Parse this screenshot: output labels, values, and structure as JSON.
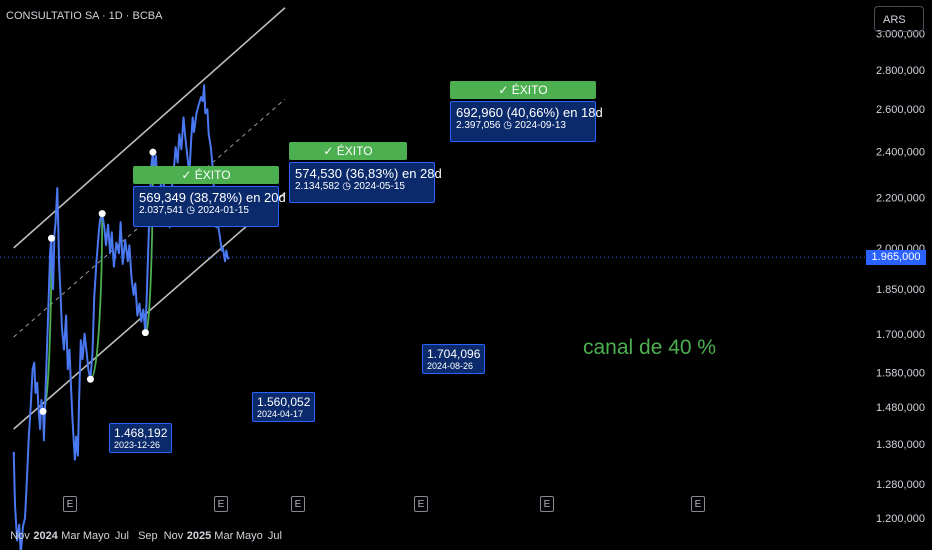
{
  "header": {
    "symbol_line": "CONSULTATIO SA · 1D · BCBA",
    "currency": "ARS"
  },
  "colors": {
    "price": "#4a78f0",
    "success": "#4caf50",
    "label_bg": "#0b2a6b",
    "label_border": "#2962ff"
  },
  "annotations": {
    "signals": [
      {
        "badge": "✓ ÉXITO",
        "gain": "569,349 (38,78%) en 20d",
        "target": "2.037,541",
        "date": "2024-01-15"
      },
      {
        "badge": "✓ ÉXITO",
        "gain": "574,530 (36,83%) en 28d",
        "target": "2.134,582",
        "date": "2024-05-15"
      },
      {
        "badge": "✓ ÉXITO",
        "gain": "692,960 (40,66%) en 18d",
        "target": "2.397,056",
        "date": "2024-09-13"
      }
    ],
    "lows": [
      {
        "price": "1.468,192",
        "date": "2023-12-26"
      },
      {
        "price": "1.560,052",
        "date": "2024-04-17"
      },
      {
        "price": "1.704,096",
        "date": "2024-08-26"
      }
    ],
    "channel_label": "canal de 40 %",
    "earnings_marker": "E"
  },
  "chart_data": {
    "type": "line",
    "title": "CONSULTATIO SA · 1D · BCBA",
    "y_axis_ticks": [
      "3.000,000",
      "2.800,000",
      "2.600,000",
      "2.400,000",
      "2.200,000",
      "2.000,000",
      "1.850,000",
      "1.700,000",
      "1.580,000",
      "1.480,000",
      "1.380,000",
      "1.280,000",
      "1.200,000"
    ],
    "y_scale": "log",
    "x_axis_ticks": [
      "Nov",
      "2024",
      "Mar",
      "Mayo",
      "Jul",
      "Sep",
      "Nov",
      "2025",
      "Mar",
      "Mayo",
      "Jul"
    ],
    "last_price": "1.965,000",
    "series": [
      {
        "values": [
          [
            "2023-10-17",
            1360
          ],
          [
            "2023-10-20",
            1230
          ],
          [
            "2023-10-25",
            1150
          ],
          [
            "2023-10-30",
            1185
          ],
          [
            "2023-11-03",
            1120
          ],
          [
            "2023-11-08",
            1180
          ],
          [
            "2023-11-13",
            1200
          ],
          [
            "2023-11-17",
            1280
          ],
          [
            "2023-11-22",
            1400
          ],
          [
            "2023-11-27",
            1490
          ],
          [
            "2023-12-01",
            1590
          ],
          [
            "2023-12-05",
            1610
          ],
          [
            "2023-12-08",
            1520
          ],
          [
            "2023-12-12",
            1550
          ],
          [
            "2023-12-15",
            1480
          ],
          [
            "2023-12-19",
            1420
          ],
          [
            "2023-12-22",
            1500
          ],
          [
            "2023-12-26",
            1468
          ],
          [
            "2023-12-28",
            1390
          ],
          [
            "2024-01-03",
            1600
          ],
          [
            "2024-01-08",
            1800
          ],
          [
            "2024-01-12",
            1990
          ],
          [
            "2024-01-15",
            2037
          ],
          [
            "2024-01-17",
            1900
          ],
          [
            "2024-01-19",
            1850
          ],
          [
            "2024-01-22",
            2050
          ],
          [
            "2024-01-25",
            2100
          ],
          [
            "2024-01-29",
            2240
          ],
          [
            "2024-01-31",
            2100
          ],
          [
            "2024-02-02",
            1950
          ],
          [
            "2024-02-06",
            1820
          ],
          [
            "2024-02-09",
            1720
          ],
          [
            "2024-02-14",
            1650
          ],
          [
            "2024-02-19",
            1760
          ],
          [
            "2024-02-23",
            1590
          ],
          [
            "2024-02-27",
            1650
          ],
          [
            "2024-03-01",
            1560
          ],
          [
            "2024-03-05",
            1450
          ],
          [
            "2024-03-08",
            1390
          ],
          [
            "2024-03-11",
            1340
          ],
          [
            "2024-03-14",
            1400
          ],
          [
            "2024-03-18",
            1350
          ],
          [
            "2024-03-21",
            1500
          ],
          [
            "2024-03-25",
            1680
          ],
          [
            "2024-03-29",
            1620
          ],
          [
            "2024-04-03",
            1700
          ],
          [
            "2024-04-08",
            1640
          ],
          [
            "2024-04-12",
            1590
          ],
          [
            "2024-04-17",
            1560
          ],
          [
            "2024-04-22",
            1640
          ],
          [
            "2024-04-26",
            1820
          ],
          [
            "2024-05-02",
            1960
          ],
          [
            "2024-05-07",
            2060
          ],
          [
            "2024-05-10",
            2110
          ],
          [
            "2024-05-15",
            2134
          ],
          [
            "2024-05-20",
            2080
          ],
          [
            "2024-05-24",
            2010
          ],
          [
            "2024-05-29",
            2090
          ],
          [
            "2024-06-03",
            1980
          ],
          [
            "2024-06-07",
            2060
          ],
          [
            "2024-06-12",
            1930
          ],
          [
            "2024-06-18",
            2020
          ],
          [
            "2024-06-24",
            1980
          ],
          [
            "2024-06-28",
            2100
          ],
          [
            "2024-07-03",
            1940
          ],
          [
            "2024-07-09",
            2030
          ],
          [
            "2024-07-15",
            1950
          ],
          [
            "2024-07-19",
            2010
          ],
          [
            "2024-07-24",
            1890
          ],
          [
            "2024-07-29",
            1830
          ],
          [
            "2024-08-02",
            1870
          ],
          [
            "2024-08-07",
            1760
          ],
          [
            "2024-08-12",
            1800
          ],
          [
            "2024-08-16",
            1740
          ],
          [
            "2024-08-21",
            1780
          ],
          [
            "2024-08-26",
            1704
          ],
          [
            "2024-08-30",
            1850
          ],
          [
            "2024-09-04",
            2100
          ],
          [
            "2024-09-09",
            2330
          ],
          [
            "2024-09-13",
            2397
          ],
          [
            "2024-09-17",
            2300
          ],
          [
            "2024-09-20",
            2380
          ],
          [
            "2024-09-24",
            2260
          ],
          [
            "2024-09-30",
            2310
          ],
          [
            "2024-10-04",
            2180
          ],
          [
            "2024-10-09",
            2260
          ],
          [
            "2024-10-14",
            2100
          ],
          [
            "2024-10-18",
            2230
          ],
          [
            "2024-10-23",
            2080
          ],
          [
            "2024-10-28",
            2240
          ],
          [
            "2024-11-01",
            2300
          ],
          [
            "2024-11-06",
            2420
          ],
          [
            "2024-11-11",
            2350
          ],
          [
            "2024-11-15",
            2480
          ],
          [
            "2024-11-20",
            2410
          ],
          [
            "2024-11-25",
            2560
          ],
          [
            "2024-11-29",
            2470
          ],
          [
            "2024-12-04",
            2380
          ],
          [
            "2024-12-09",
            2300
          ],
          [
            "2024-12-13",
            2450
          ],
          [
            "2024-12-17",
            2560
          ],
          [
            "2024-12-20",
            2490
          ],
          [
            "2024-12-26",
            2580
          ],
          [
            "2024-12-31",
            2620
          ],
          [
            "2025-01-06",
            2660
          ],
          [
            "2025-01-10",
            2640
          ],
          [
            "2025-01-13",
            2720
          ],
          [
            "2025-01-16",
            2580
          ],
          [
            "2025-01-21",
            2600
          ],
          [
            "2025-01-24",
            2480
          ],
          [
            "2025-01-29",
            2420
          ],
          [
            "2025-02-04",
            2300
          ],
          [
            "2025-02-07",
            2150
          ],
          [
            "2025-02-11",
            2080
          ],
          [
            "2025-02-14",
            2100
          ],
          [
            "2025-02-19",
            2050
          ],
          [
            "2025-02-24",
            1990
          ],
          [
            "2025-02-27",
            2000
          ],
          [
            "2025-03-04",
            1950
          ],
          [
            "2025-03-07",
            1990
          ],
          [
            "2025-03-11",
            1960
          ],
          [
            "2025-03-14",
            1965
          ]
        ]
      }
    ],
    "trend_lines": [
      {
        "from": [
          "2023-10-17",
          1690
        ],
        "to": [
          "2025-07-25",
          2650
        ]
      },
      {
        "from": [
          "2023-10-17",
          2000
        ],
        "to": [
          "2025-07-25",
          3150
        ]
      },
      {
        "from": [
          "2023-10-17",
          1420
        ],
        "to": [
          "2025-07-25",
          2220
        ]
      }
    ],
    "grid": false
  }
}
